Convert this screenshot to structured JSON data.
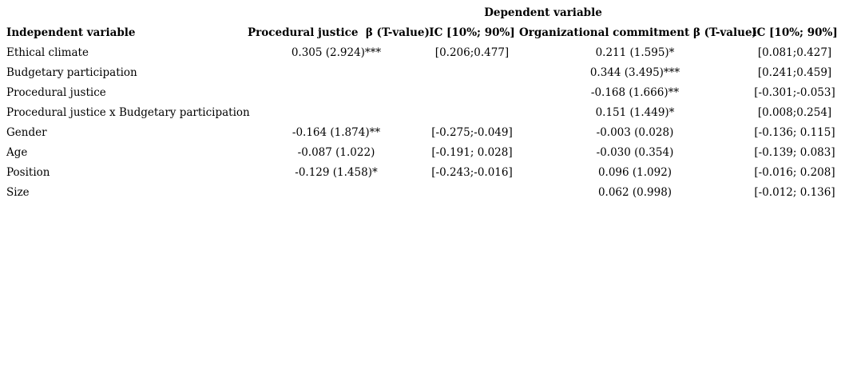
{
  "table": {
    "spanning_header": "Dependent variable",
    "columns": [
      "Independent variable",
      "Procedural justice  β (T-value)",
      "IC [10%; 90%]",
      "Organizational commitment β (T-value)",
      "IC [10%; 90%]"
    ],
    "rows": [
      {
        "label": "Ethical climate",
        "cells": [
          "0.305 (2.924)***",
          "[0.206;0.477]",
          "0.211 (1.595)*",
          "[0.081;0.427]"
        ]
      },
      {
        "label": "Budgetary participation",
        "cells": [
          "",
          "",
          "0.344 (3.495)***",
          "[0.241;0.459]"
        ]
      },
      {
        "label": "Procedural justice",
        "cells": [
          "",
          "",
          "-0.168 (1.666)**",
          "[-0.301;-0.053]"
        ]
      },
      {
        "label": "Procedural justice x Budgetary participation",
        "cells": [
          "",
          "",
          "0.151 (1.449)*",
          "[0.008;0.254]"
        ]
      },
      {
        "label": "Gender",
        "cells": [
          "-0.164 (1.874)**",
          "[-0.275;-0.049]",
          "-0.003 (0.028)",
          "[-0.136; 0.115]"
        ]
      },
      {
        "label": "Age",
        "cells": [
          "-0.087 (1.022)",
          "[-0.191; 0.028]",
          "-0.030 (0.354)",
          "[-0.139; 0.083]"
        ]
      },
      {
        "label": "Position",
        "cells": [
          "-0.129 (1.458)*",
          "[-0.243;-0.016]",
          "0.096 (1.092)",
          "[-0.016; 0.208]"
        ]
      },
      {
        "label": "Size",
        "cells": [
          "",
          "",
          "0.062 (0.998)",
          "[-0.012; 0.136]"
        ]
      }
    ],
    "text_color": "#000000",
    "background_color": "#ffffff"
  }
}
